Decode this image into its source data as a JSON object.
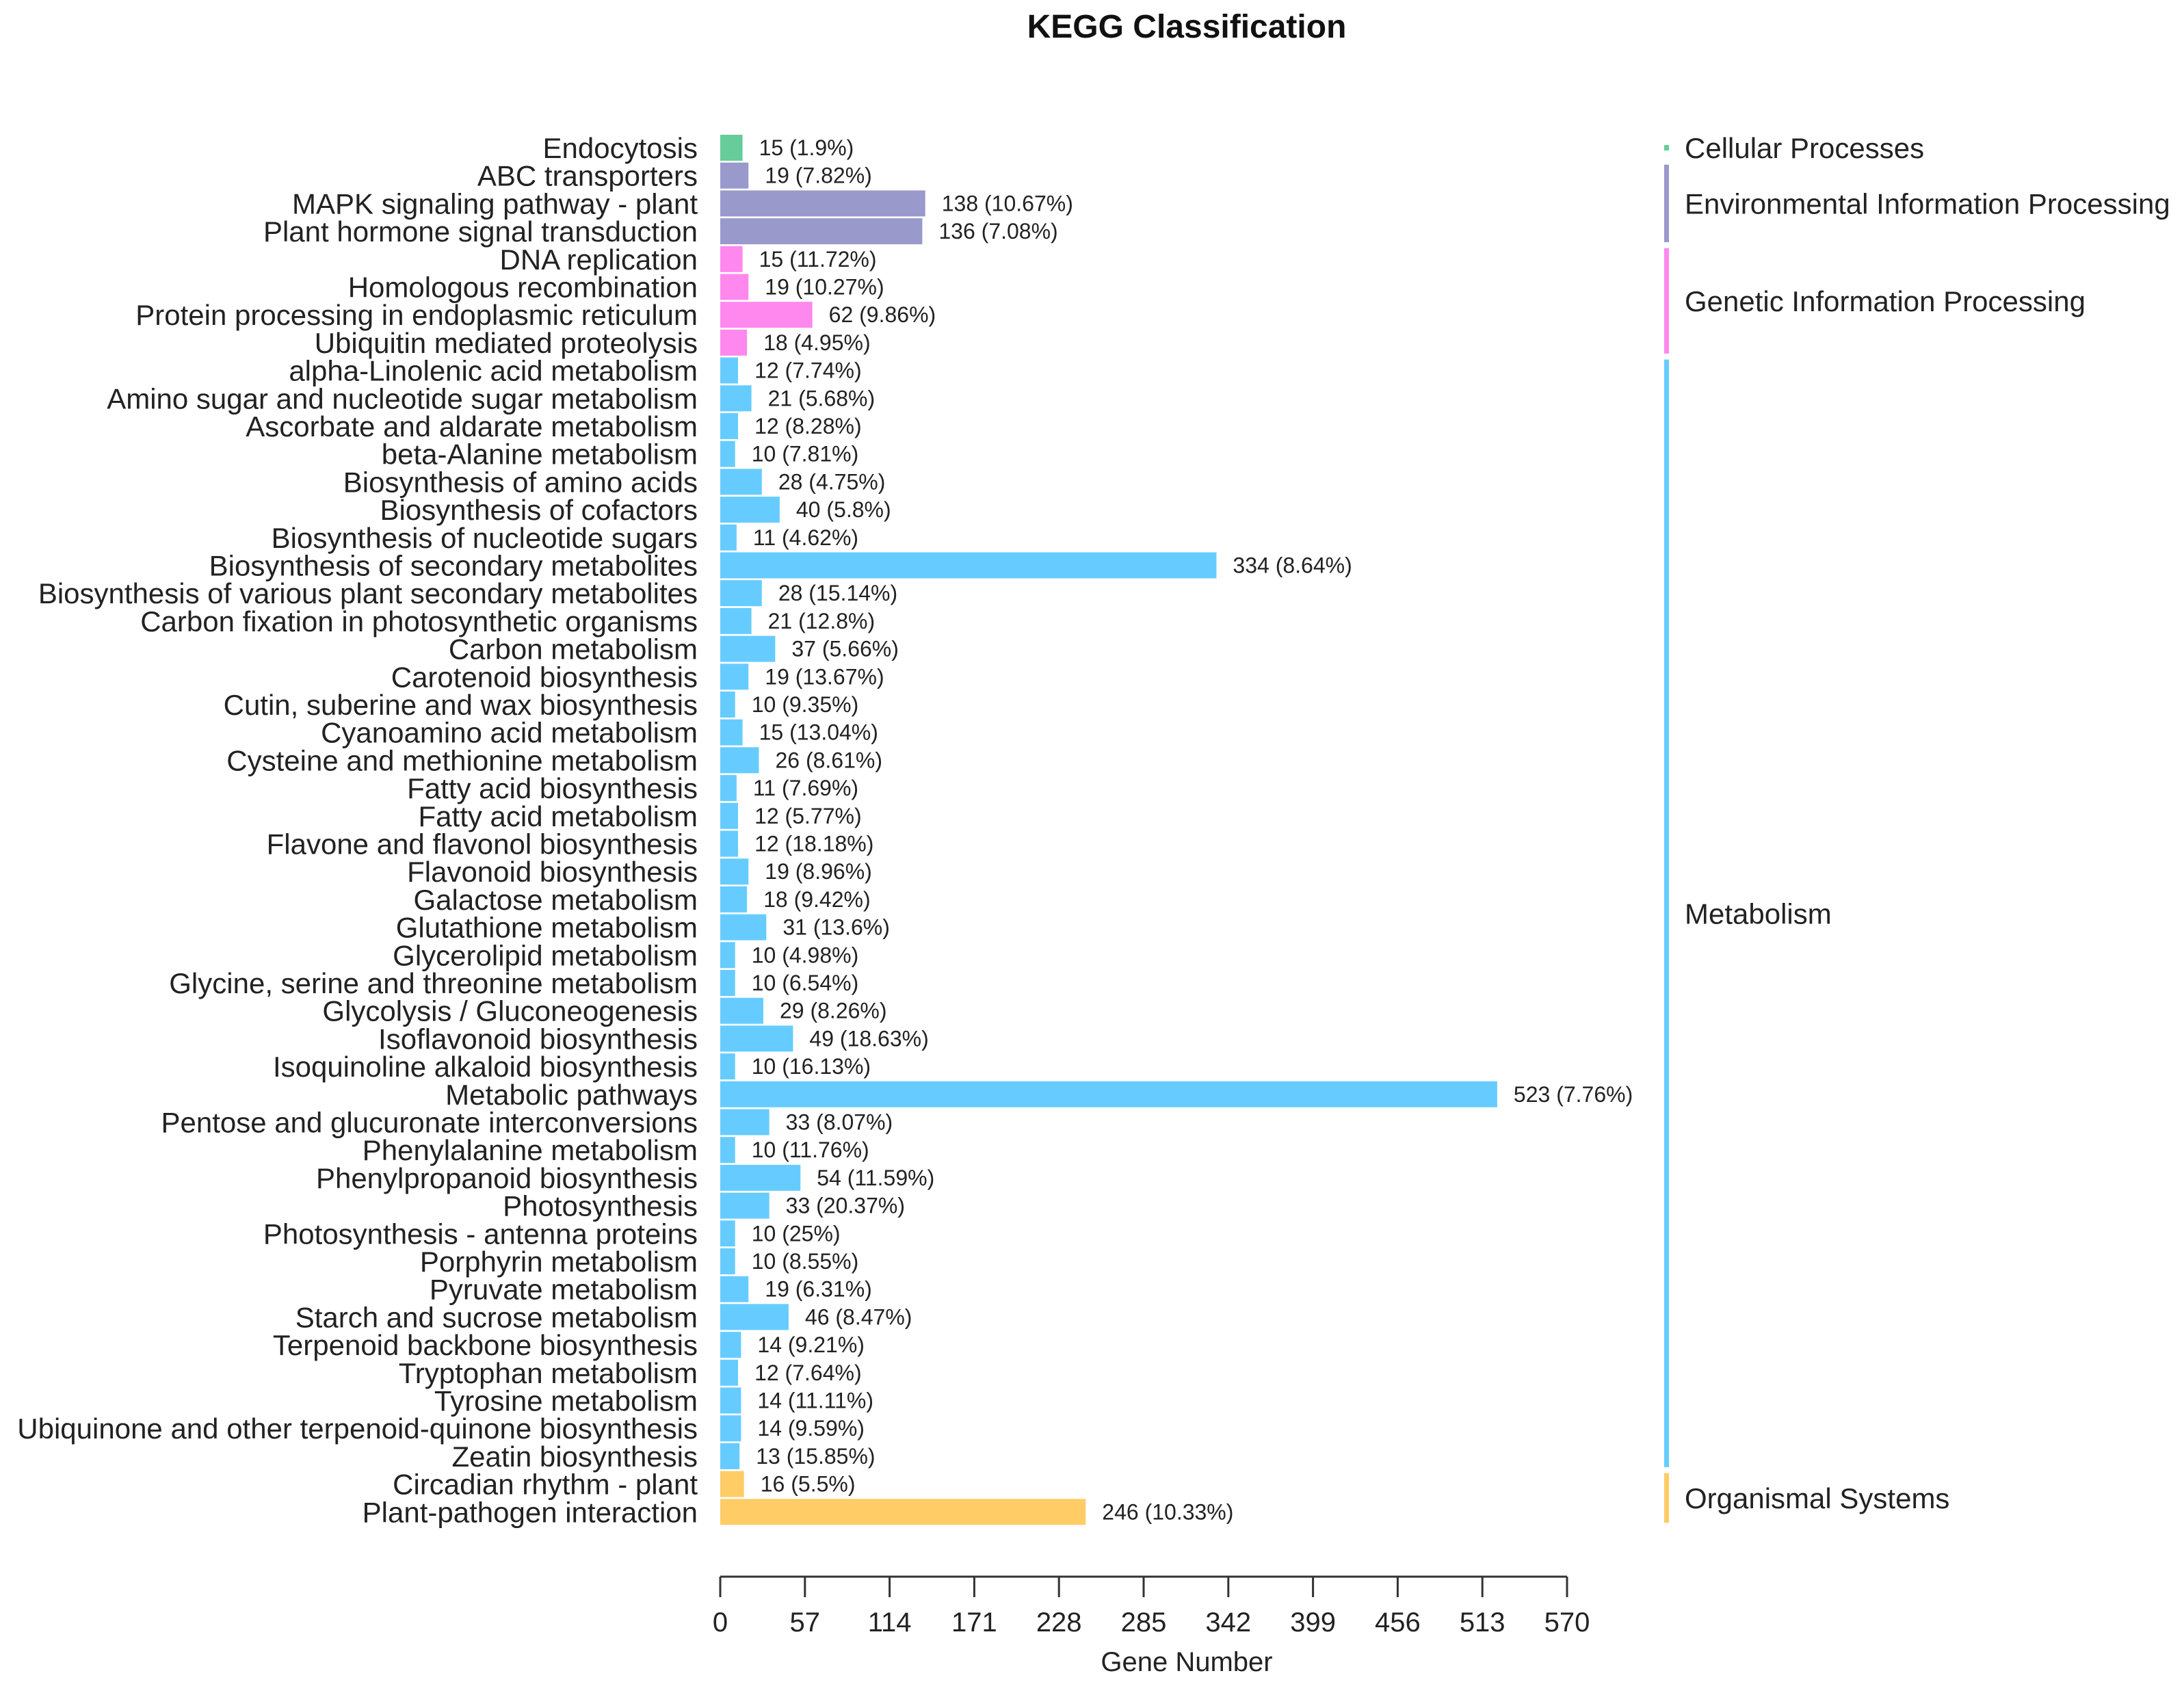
{
  "chart_data": {
    "type": "bar",
    "orientation": "horizontal",
    "title": "KEGG Classification",
    "xlabel": "Gene Number",
    "ylabel": "",
    "xlim": [
      0,
      570
    ],
    "xticks": [
      "0",
      "57",
      "114",
      "171",
      "228",
      "285",
      "342",
      "399",
      "456",
      "513",
      "570"
    ],
    "grid": false,
    "legend_position": "right",
    "groups": [
      {
        "name": "Cellular Processes",
        "color": "#66CC99"
      },
      {
        "name": "Environmental Information Processing",
        "color": "#9999CC"
      },
      {
        "name": "Genetic Information Processing",
        "color": "#FF88EE"
      },
      {
        "name": "Metabolism",
        "color": "#66CCFF"
      },
      {
        "name": "Organismal Systems",
        "color": "#FFCC66"
      }
    ],
    "bars": [
      {
        "category": "Endocytosis",
        "value": 15,
        "label": "15 (1.9%)",
        "group": 0
      },
      {
        "category": "ABC transporters",
        "value": 19,
        "label": "19 (7.82%)",
        "group": 1
      },
      {
        "category": "MAPK signaling pathway - plant",
        "value": 138,
        "label": "138 (10.67%)",
        "group": 1
      },
      {
        "category": "Plant hormone signal transduction",
        "value": 136,
        "label": "136 (7.08%)",
        "group": 1
      },
      {
        "category": "DNA replication",
        "value": 15,
        "label": "15 (11.72%)",
        "group": 2
      },
      {
        "category": "Homologous recombination",
        "value": 19,
        "label": "19 (10.27%)",
        "group": 2
      },
      {
        "category": "Protein processing in endoplasmic reticulum",
        "value": 62,
        "label": "62 (9.86%)",
        "group": 2
      },
      {
        "category": "Ubiquitin mediated proteolysis",
        "value": 18,
        "label": "18 (4.95%)",
        "group": 2
      },
      {
        "category": "alpha-Linolenic acid metabolism",
        "value": 12,
        "label": "12 (7.74%)",
        "group": 3
      },
      {
        "category": "Amino sugar and nucleotide sugar metabolism",
        "value": 21,
        "label": "21 (5.68%)",
        "group": 3
      },
      {
        "category": "Ascorbate and aldarate metabolism",
        "value": 12,
        "label": "12 (8.28%)",
        "group": 3
      },
      {
        "category": "beta-Alanine metabolism",
        "value": 10,
        "label": "10 (7.81%)",
        "group": 3
      },
      {
        "category": "Biosynthesis of amino acids",
        "value": 28,
        "label": "28 (4.75%)",
        "group": 3
      },
      {
        "category": "Biosynthesis of cofactors",
        "value": 40,
        "label": "40 (5.8%)",
        "group": 3
      },
      {
        "category": "Biosynthesis of nucleotide sugars",
        "value": 11,
        "label": "11 (4.62%)",
        "group": 3
      },
      {
        "category": "Biosynthesis of secondary metabolites",
        "value": 334,
        "label": "334 (8.64%)",
        "group": 3
      },
      {
        "category": "Biosynthesis of various plant secondary metabolites",
        "value": 28,
        "label": "28 (15.14%)",
        "group": 3
      },
      {
        "category": "Carbon fixation in photosynthetic organisms",
        "value": 21,
        "label": "21 (12.8%)",
        "group": 3
      },
      {
        "category": "Carbon metabolism",
        "value": 37,
        "label": "37 (5.66%)",
        "group": 3
      },
      {
        "category": "Carotenoid biosynthesis",
        "value": 19,
        "label": "19 (13.67%)",
        "group": 3
      },
      {
        "category": "Cutin, suberine and wax biosynthesis",
        "value": 10,
        "label": "10 (9.35%)",
        "group": 3
      },
      {
        "category": "Cyanoamino acid metabolism",
        "value": 15,
        "label": "15 (13.04%)",
        "group": 3
      },
      {
        "category": "Cysteine and methionine metabolism",
        "value": 26,
        "label": "26 (8.61%)",
        "group": 3
      },
      {
        "category": "Fatty acid biosynthesis",
        "value": 11,
        "label": "11 (7.69%)",
        "group": 3
      },
      {
        "category": "Fatty acid metabolism",
        "value": 12,
        "label": "12 (5.77%)",
        "group": 3
      },
      {
        "category": "Flavone and flavonol biosynthesis",
        "value": 12,
        "label": "12 (18.18%)",
        "group": 3
      },
      {
        "category": "Flavonoid biosynthesis",
        "value": 19,
        "label": "19 (8.96%)",
        "group": 3
      },
      {
        "category": "Galactose metabolism",
        "value": 18,
        "label": "18 (9.42%)",
        "group": 3
      },
      {
        "category": "Glutathione metabolism",
        "value": 31,
        "label": "31 (13.6%)",
        "group": 3
      },
      {
        "category": "Glycerolipid metabolism",
        "value": 10,
        "label": "10 (4.98%)",
        "group": 3
      },
      {
        "category": "Glycine, serine and threonine metabolism",
        "value": 10,
        "label": "10 (6.54%)",
        "group": 3
      },
      {
        "category": "Glycolysis / Gluconeogenesis",
        "value": 29,
        "label": "29 (8.26%)",
        "group": 3
      },
      {
        "category": "Isoflavonoid biosynthesis",
        "value": 49,
        "label": "49 (18.63%)",
        "group": 3
      },
      {
        "category": "Isoquinoline alkaloid biosynthesis",
        "value": 10,
        "label": "10 (16.13%)",
        "group": 3
      },
      {
        "category": "Metabolic pathways",
        "value": 523,
        "label": "523 (7.76%)",
        "group": 3
      },
      {
        "category": "Pentose and glucuronate interconversions",
        "value": 33,
        "label": "33 (8.07%)",
        "group": 3
      },
      {
        "category": "Phenylalanine metabolism",
        "value": 10,
        "label": "10 (11.76%)",
        "group": 3
      },
      {
        "category": "Phenylpropanoid biosynthesis",
        "value": 54,
        "label": "54 (11.59%)",
        "group": 3
      },
      {
        "category": "Photosynthesis",
        "value": 33,
        "label": "33 (20.37%)",
        "group": 3
      },
      {
        "category": "Photosynthesis - antenna proteins",
        "value": 10,
        "label": "10 (25%)",
        "group": 3
      },
      {
        "category": "Porphyrin metabolism",
        "value": 10,
        "label": "10 (8.55%)",
        "group": 3
      },
      {
        "category": "Pyruvate metabolism",
        "value": 19,
        "label": "19 (6.31%)",
        "group": 3
      },
      {
        "category": "Starch and sucrose metabolism",
        "value": 46,
        "label": "46 (8.47%)",
        "group": 3
      },
      {
        "category": "Terpenoid backbone biosynthesis",
        "value": 14,
        "label": "14 (9.21%)",
        "group": 3
      },
      {
        "category": "Tryptophan metabolism",
        "value": 12,
        "label": "12 (7.64%)",
        "group": 3
      },
      {
        "category": "Tyrosine metabolism",
        "value": 14,
        "label": "14 (11.11%)",
        "group": 3
      },
      {
        "category": "Ubiquinone and other terpenoid-quinone biosynthesis",
        "value": 14,
        "label": "14 (9.59%)",
        "group": 3
      },
      {
        "category": "Zeatin biosynthesis",
        "value": 13,
        "label": "13 (15.85%)",
        "group": 3
      },
      {
        "category": "Circadian rhythm - plant",
        "value": 16,
        "label": "16 (5.5%)",
        "group": 4
      },
      {
        "category": "Plant-pathogen interaction",
        "value": 246,
        "label": "246 (10.33%)",
        "group": 4
      }
    ]
  }
}
